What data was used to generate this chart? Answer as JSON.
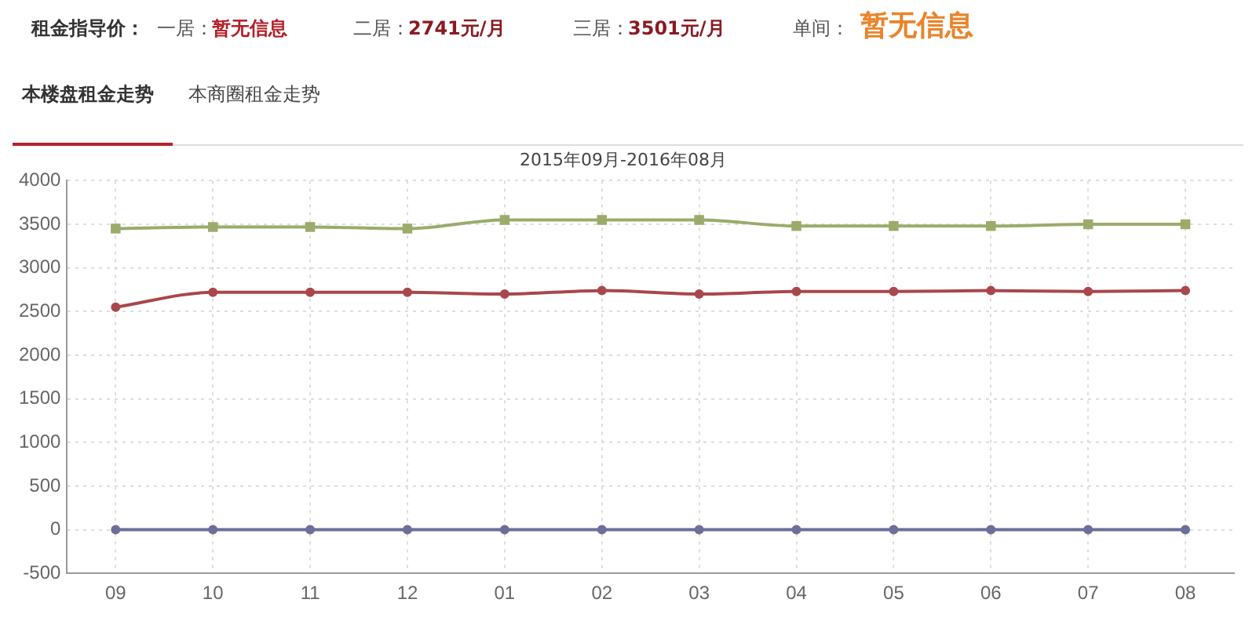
{
  "chart_data": {
    "type": "line",
    "title": "2015年09月-2016年08月",
    "annotations": [
      "租金指导价：",
      "一居：",
      "暂无信息",
      "二居：",
      "2741元/月",
      "三居：",
      "3501元/月",
      "单间：",
      "暂无信息",
      "本楼盘租金走势",
      "本商圈租金走势"
    ],
    "categories": [
      "09",
      "10",
      "11",
      "12",
      "01",
      "02",
      "03",
      "04",
      "05",
      "06",
      "07",
      "08"
    ],
    "series": [
      {
        "color": "#9bab6a",
        "marker": "square",
        "values": [
          3450,
          3470,
          3470,
          3450,
          3550,
          3550,
          3550,
          3480,
          3480,
          3480,
          3500,
          3500
        ]
      },
      {
        "color": "#a8484c",
        "marker": "circle",
        "values": [
          2550,
          2720,
          2720,
          2720,
          2700,
          2740,
          2700,
          2730,
          2730,
          2740,
          2730,
          2740
        ]
      },
      {
        "color": "#6c6f98",
        "marker": "circle",
        "values": [
          0,
          0,
          0,
          0,
          0,
          0,
          0,
          0,
          0,
          0,
          0,
          0
        ]
      }
    ],
    "ylim": [
      -500,
      4000
    ],
    "yticks": [
      -500,
      0,
      500,
      1000,
      1500,
      2000,
      2500,
      3000,
      3500,
      4000
    ],
    "grid": true,
    "legend": false
  }
}
